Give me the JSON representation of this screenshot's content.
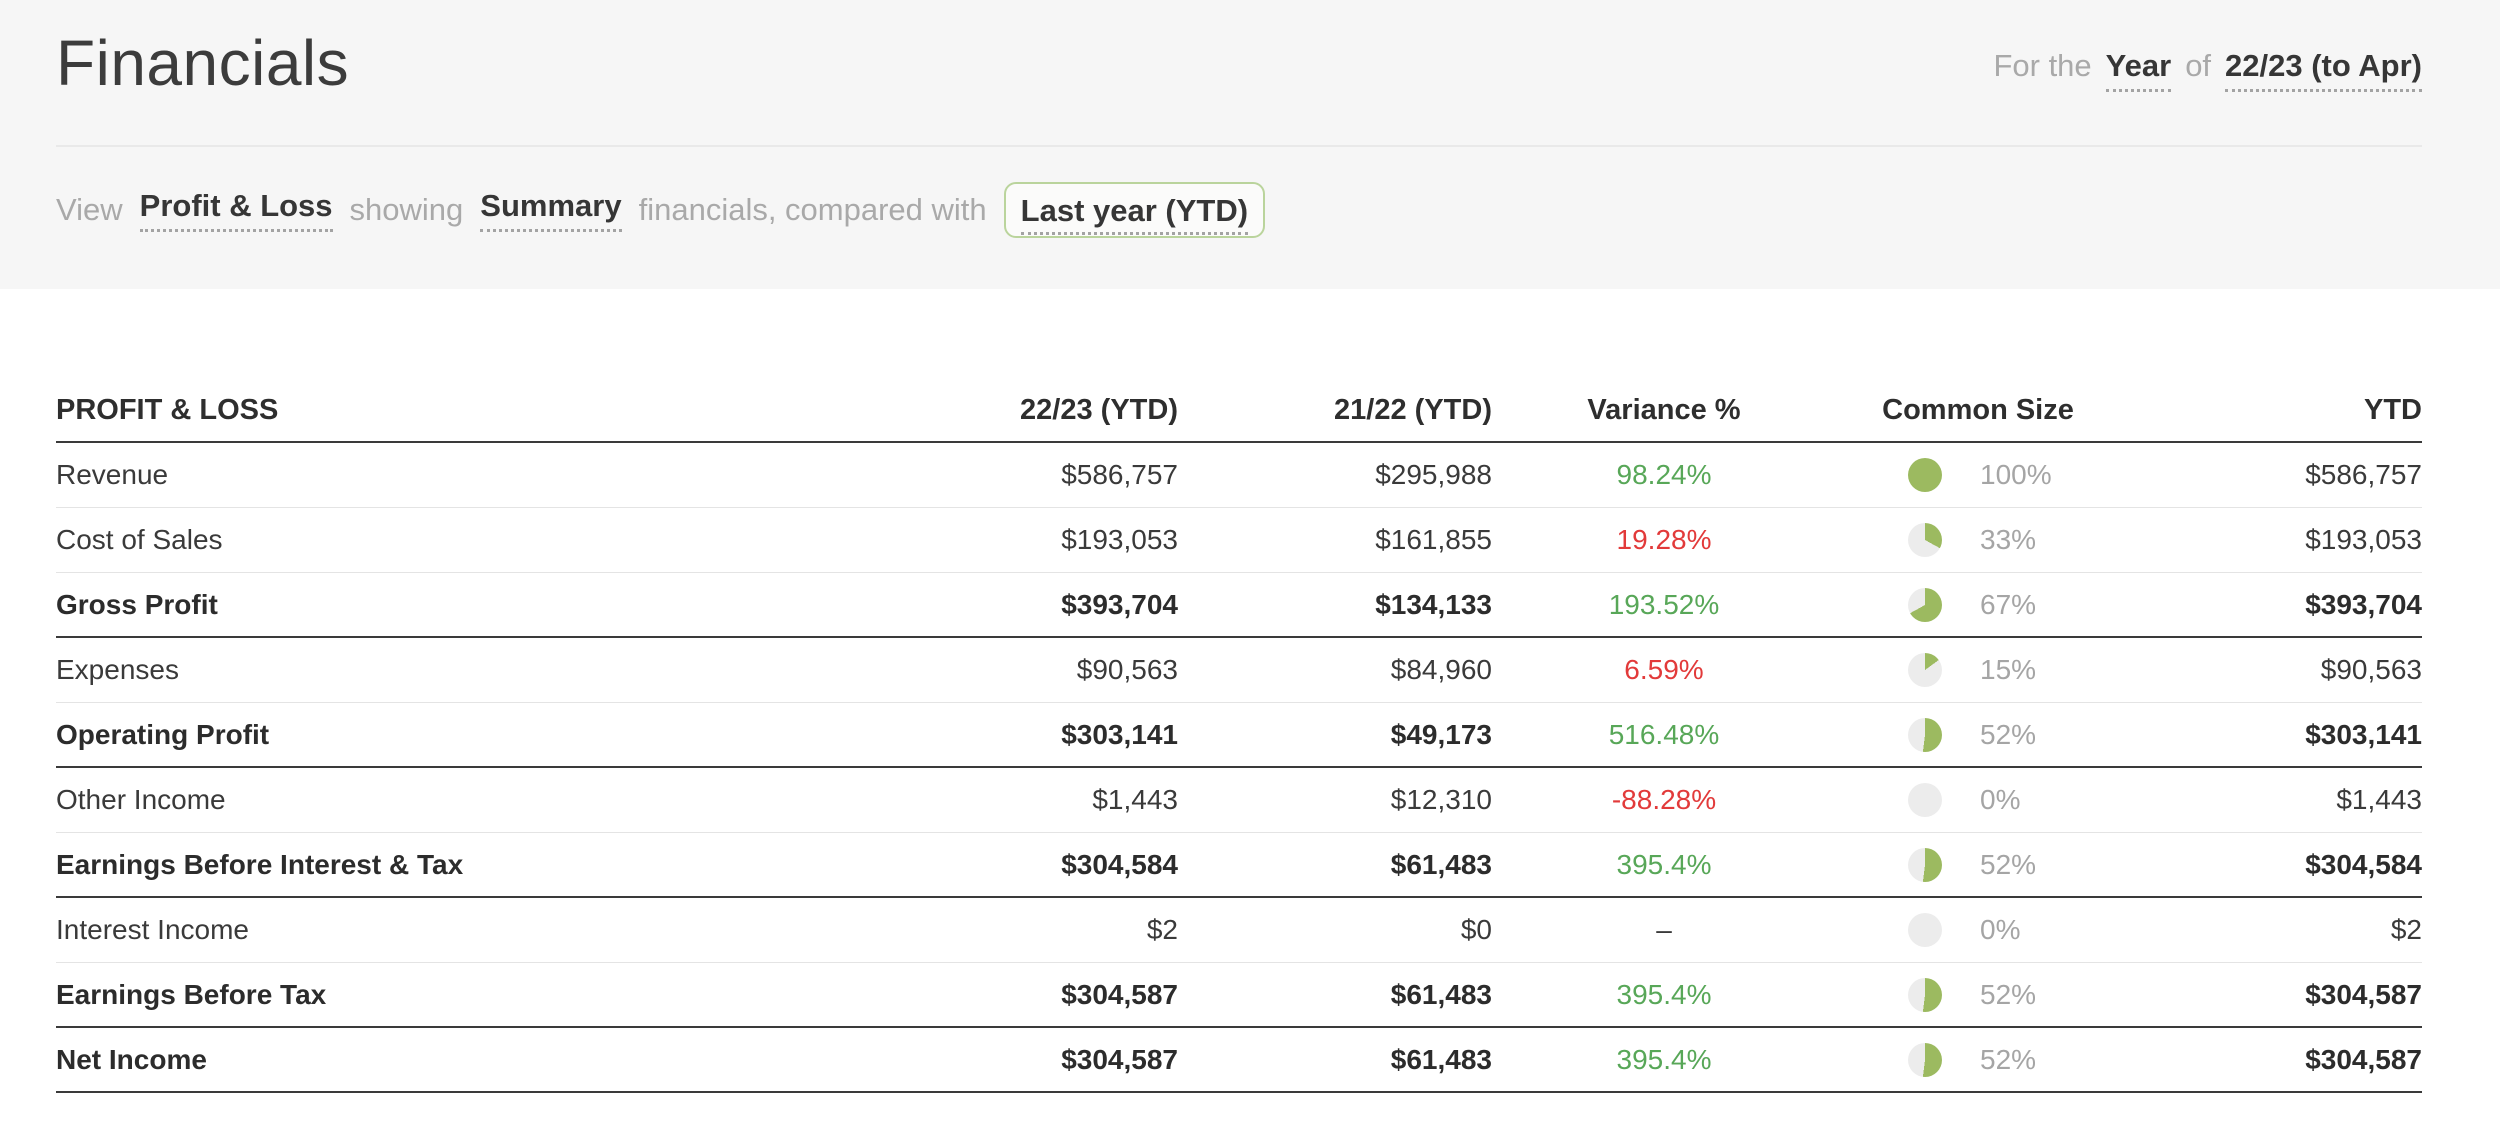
{
  "header": {
    "title": "Financials",
    "period": {
      "prefix": "For the",
      "granularity": "Year",
      "connector": "of",
      "value": "22/23 (to Apr)"
    }
  },
  "filters": {
    "view_label": "View",
    "report_type": "Profit & Loss",
    "showing_label": "showing",
    "detail_level": "Summary",
    "compare_label": "financials, compared with",
    "comparison": "Last year (YTD)"
  },
  "table": {
    "columns": {
      "label": "PROFIT & LOSS",
      "current": "22/23 (YTD)",
      "previous": "21/22 (YTD)",
      "variance": "Variance %",
      "common_size": "Common Size",
      "ytd": "YTD"
    },
    "rows": [
      {
        "label": "Revenue",
        "current": "$586,757",
        "previous": "$295,988",
        "variance": "98.24%",
        "variance_tone": "pos",
        "common_size_pct": 100,
        "common_size_label": "100%",
        "ytd": "$586,757",
        "bold": false,
        "border": "light"
      },
      {
        "label": "Cost of Sales",
        "current": "$193,053",
        "previous": "$161,855",
        "variance": "19.28%",
        "variance_tone": "neg",
        "common_size_pct": 33,
        "common_size_label": "33%",
        "ytd": "$193,053",
        "bold": false,
        "border": "light"
      },
      {
        "label": "Gross Profit",
        "current": "$393,704",
        "previous": "$134,133",
        "variance": "193.52%",
        "variance_tone": "pos",
        "common_size_pct": 67,
        "common_size_label": "67%",
        "ytd": "$393,704",
        "bold": true,
        "border": "dark"
      },
      {
        "label": "Expenses",
        "current": "$90,563",
        "previous": "$84,960",
        "variance": "6.59%",
        "variance_tone": "neg",
        "common_size_pct": 15,
        "common_size_label": "15%",
        "ytd": "$90,563",
        "bold": false,
        "border": "light"
      },
      {
        "label": "Operating Profit",
        "current": "$303,141",
        "previous": "$49,173",
        "variance": "516.48%",
        "variance_tone": "pos",
        "common_size_pct": 52,
        "common_size_label": "52%",
        "ytd": "$303,141",
        "bold": true,
        "border": "dark"
      },
      {
        "label": "Other Income",
        "current": "$1,443",
        "previous": "$12,310",
        "variance": "-88.28%",
        "variance_tone": "neg",
        "common_size_pct": 0,
        "common_size_label": "0%",
        "ytd": "$1,443",
        "bold": false,
        "border": "light"
      },
      {
        "label": "Earnings Before Interest & Tax",
        "current": "$304,584",
        "previous": "$61,483",
        "variance": "395.4%",
        "variance_tone": "pos",
        "common_size_pct": 52,
        "common_size_label": "52%",
        "ytd": "$304,584",
        "bold": true,
        "border": "dark"
      },
      {
        "label": "Interest Income",
        "current": "$2",
        "previous": "$0",
        "variance": "–",
        "variance_tone": "dash",
        "common_size_pct": 0,
        "common_size_label": "0%",
        "ytd": "$2",
        "bold": false,
        "border": "light"
      },
      {
        "label": "Earnings Before Tax",
        "current": "$304,587",
        "previous": "$61,483",
        "variance": "395.4%",
        "variance_tone": "pos",
        "common_size_pct": 52,
        "common_size_label": "52%",
        "ytd": "$304,587",
        "bold": true,
        "border": "dark"
      },
      {
        "label": "Net Income",
        "current": "$304,587",
        "previous": "$61,483",
        "variance": "395.4%",
        "variance_tone": "pos",
        "common_size_pct": 52,
        "common_size_label": "52%",
        "ytd": "$304,587",
        "bold": true,
        "border": "dark"
      }
    ]
  },
  "colors": {
    "pie_fill": "#9cba60",
    "pie_rest": "#ececec",
    "positive": "#58a758",
    "negative": "#e23a3a",
    "banner_bg": "#f6f6f6",
    "chip_border": "#bad49c",
    "dark_border": "#3a3a3a",
    "light_border": "#e4e4e4"
  }
}
